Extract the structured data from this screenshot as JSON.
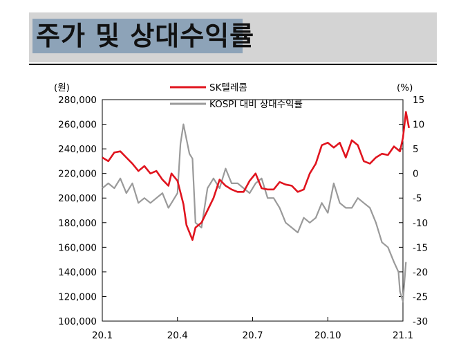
{
  "title": "주가 및 상대수익률",
  "colors": {
    "header_bg": "#d4d4d4",
    "title_highlight": "#8da3b8",
    "sk_line": "#e0141e",
    "kospi_line": "#9a9a9a"
  },
  "chart_data": {
    "type": "line",
    "left_axis_unit": "(원)",
    "right_axis_unit": "(%)",
    "left_ylim": [
      100000,
      280000
    ],
    "right_ylim": [
      -30,
      15
    ],
    "left_ticks": [
      "280,000",
      "260,000",
      "240,000",
      "220,000",
      "200,000",
      "180,000",
      "160,000",
      "140,000",
      "120,000",
      "100,000"
    ],
    "left_tick_values": [
      280000,
      260000,
      240000,
      220000,
      200000,
      180000,
      160000,
      140000,
      120000,
      100000
    ],
    "right_ticks": [
      "15",
      "10",
      "5",
      "0",
      "-5",
      "-10",
      "-15",
      "-20",
      "-25",
      "-30"
    ],
    "right_tick_values": [
      15,
      10,
      5,
      0,
      -5,
      -10,
      -15,
      -20,
      -25,
      -30
    ],
    "x_ticks": [
      "20.1",
      "20.4",
      "20.7",
      "20.10",
      "21.1"
    ],
    "x_tick_values": [
      2020.0,
      2020.25,
      2020.5,
      2020.75,
      2021.0
    ],
    "xlim": [
      2020.0,
      2021.0
    ],
    "grid": false,
    "legend_position": "top-center",
    "series": [
      {
        "name": "SK텔레콤",
        "axis": "left",
        "color": "#e0141e",
        "x": [
          2020.0,
          2020.02,
          2020.04,
          2020.06,
          2020.08,
          2020.1,
          2020.12,
          2020.14,
          2020.16,
          2020.18,
          2020.2,
          2020.22,
          2020.23,
          2020.25,
          2020.27,
          2020.28,
          2020.3,
          2020.31,
          2020.33,
          2020.35,
          2020.37,
          2020.39,
          2020.41,
          2020.43,
          2020.45,
          2020.47,
          2020.49,
          2020.51,
          2020.53,
          2020.55,
          2020.57,
          2020.59,
          2020.61,
          2020.63,
          2020.65,
          2020.67,
          2020.69,
          2020.71,
          2020.73,
          2020.75,
          2020.77,
          2020.79,
          2020.81,
          2020.83,
          2020.85,
          2020.87,
          2020.89,
          2020.91,
          2020.93,
          2020.95,
          2020.97,
          2020.99,
          2021.0,
          2021.01,
          2021.02
        ],
        "values": [
          233000,
          230000,
          237000,
          238000,
          233000,
          228000,
          222000,
          226000,
          220000,
          222000,
          215000,
          210000,
          220000,
          214000,
          195000,
          178000,
          166000,
          176000,
          180000,
          190000,
          200000,
          215000,
          210000,
          207000,
          205000,
          205000,
          214000,
          220000,
          208000,
          207000,
          207000,
          213000,
          211000,
          210000,
          205000,
          207000,
          220000,
          228000,
          243000,
          245000,
          241000,
          245000,
          233000,
          247000,
          243000,
          230000,
          228000,
          233000,
          236000,
          235000,
          242000,
          238000,
          249000,
          270000,
          257000
        ]
      },
      {
        "name": "KOSPI 대비 상대수익률",
        "axis": "right",
        "color": "#9a9a9a",
        "x": [
          2020.0,
          2020.02,
          2020.04,
          2020.06,
          2020.08,
          2020.1,
          2020.12,
          2020.14,
          2020.16,
          2020.18,
          2020.2,
          2020.22,
          2020.23,
          2020.25,
          2020.26,
          2020.27,
          2020.29,
          2020.3,
          2020.31,
          2020.33,
          2020.35,
          2020.37,
          2020.39,
          2020.41,
          2020.43,
          2020.45,
          2020.47,
          2020.49,
          2020.51,
          2020.53,
          2020.55,
          2020.57,
          2020.59,
          2020.61,
          2020.63,
          2020.65,
          2020.67,
          2020.69,
          2020.71,
          2020.73,
          2020.75,
          2020.77,
          2020.79,
          2020.81,
          2020.83,
          2020.85,
          2020.87,
          2020.89,
          2020.91,
          2020.93,
          2020.95,
          2020.97,
          2020.985,
          2020.99,
          2021.0,
          2021.01
        ],
        "values": [
          -3,
          -2,
          -3,
          -1,
          -4,
          -2,
          -6,
          -5,
          -6,
          -5,
          -4,
          -7,
          -6,
          -4,
          6,
          10,
          4,
          3,
          -10,
          -11,
          -3,
          -1,
          -3,
          1,
          -2,
          -2,
          -3,
          -4,
          -2,
          -1,
          -5,
          -5,
          -7,
          -10,
          -11,
          -12,
          -9,
          -10,
          -9,
          -6,
          -8,
          -2,
          -6,
          -7,
          -7,
          -5,
          -6,
          -7,
          -10,
          -14,
          -15,
          -18,
          -20,
          -24,
          -26,
          -18
        ]
      }
    ]
  }
}
